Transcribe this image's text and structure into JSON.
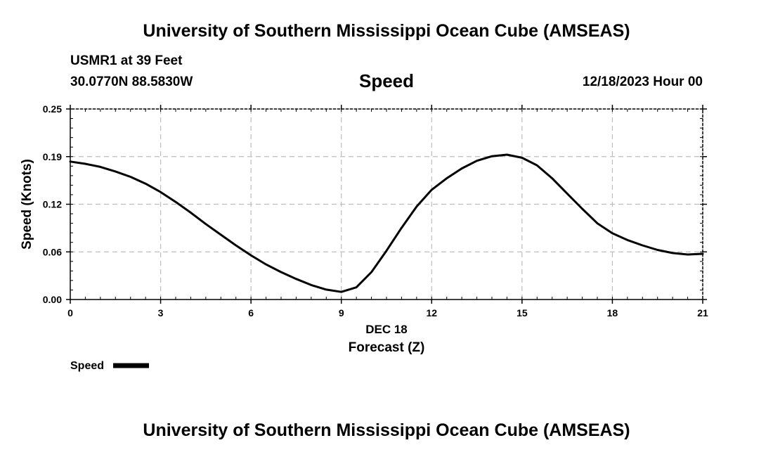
{
  "header": {
    "title": "University of Southern Mississippi Ocean Cube (AMSEAS)",
    "station": "USMR1 at 39 Feet",
    "coordinates": "30.0770N  88.5830W",
    "date": "12/18/2023 Hour 00"
  },
  "footer": {
    "title": "University of Southern Mississippi Ocean Cube (AMSEAS)"
  },
  "chart_data": {
    "type": "line",
    "title": "Speed",
    "xlabel": "Forecast (Z)",
    "xlabel_date": "DEC 18",
    "ylabel": "Speed (Knots)",
    "xlim": [
      0,
      21
    ],
    "ylim": [
      0,
      0.25
    ],
    "xticks": [
      0,
      3,
      6,
      9,
      12,
      15,
      18,
      21
    ],
    "xtick_labels": [
      "0",
      "3",
      "6",
      "9",
      "12",
      "15",
      "18",
      "21"
    ],
    "yticks": [
      0,
      0.0625,
      0.125,
      0.1875,
      0.25
    ],
    "ytick_labels": [
      "0.00",
      "0.06",
      "0.12",
      "0.19",
      "0.25"
    ],
    "grid": true,
    "legend": [
      {
        "name": "Speed",
        "color": "#000000"
      }
    ],
    "series": [
      {
        "name": "Speed",
        "color": "#000000",
        "x": [
          0,
          0.5,
          1,
          1.5,
          2,
          2.5,
          3,
          3.5,
          4,
          4.5,
          5,
          5.5,
          6,
          6.5,
          7,
          7.5,
          8,
          8.5,
          9,
          9.5,
          10,
          10.5,
          11,
          11.5,
          12,
          12.5,
          13,
          13.5,
          14,
          14.5,
          15,
          15.5,
          16,
          16.5,
          17,
          17.5,
          18,
          18.5,
          19,
          19.5,
          20,
          20.5,
          21
        ],
        "values": [
          0.181,
          0.178,
          0.174,
          0.168,
          0.161,
          0.152,
          0.141,
          0.128,
          0.114,
          0.099,
          0.085,
          0.071,
          0.058,
          0.046,
          0.036,
          0.027,
          0.019,
          0.013,
          0.01,
          0.016,
          0.036,
          0.064,
          0.094,
          0.122,
          0.144,
          0.159,
          0.172,
          0.182,
          0.188,
          0.19,
          0.186,
          0.176,
          0.159,
          0.139,
          0.119,
          0.1,
          0.087,
          0.078,
          0.071,
          0.065,
          0.061,
          0.059,
          0.06
        ]
      }
    ]
  }
}
